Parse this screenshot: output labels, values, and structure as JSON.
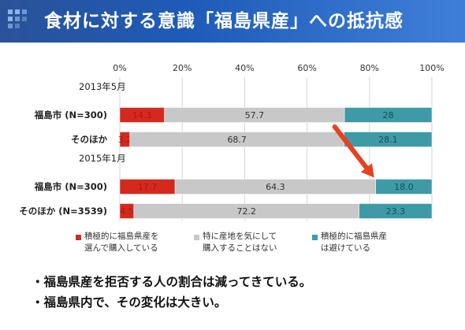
{
  "header": {
    "title": "食材に対する意識「福島県産」への抵抗感"
  },
  "chart_data": {
    "type": "bar",
    "orientation": "horizontal",
    "stacked": true,
    "percent_axis": true,
    "x_ticks": [
      "0%",
      "20%",
      "40%",
      "60%",
      "80%",
      "100%"
    ],
    "xlim": [
      0,
      100
    ],
    "groups": [
      {
        "label": "2013年5月",
        "rows": [
          {
            "label": "福島市 (N=300)",
            "values": [
              14.3,
              57.7,
              28
            ],
            "value_labels": [
              "14.3",
              "57.7",
              "28"
            ]
          },
          {
            "label": "そのほか",
            "values": [
              3.2,
              68.7,
              28.1
            ],
            "value_labels": [
              "3.2",
              "68.7",
              "28.1"
            ]
          }
        ]
      },
      {
        "label": "2015年1月",
        "rows": [
          {
            "label": "福島市 (N=300)",
            "values": [
              17.7,
              64.3,
              18.0
            ],
            "value_labels": [
              "17.7",
              "64.3",
              "18.0"
            ]
          },
          {
            "label": "そのほか (N=3539)",
            "values": [
              4.5,
              72.2,
              23.3
            ],
            "value_labels": [
              "4.5",
              "72.2",
              "23.3"
            ]
          }
        ]
      }
    ],
    "series": [
      {
        "name": "積極的に福島県産を\n選んで購入している",
        "color": "#d42a1e"
      },
      {
        "name": "特に産地を気にして\n購入することはない",
        "color": "#c8c8c8"
      },
      {
        "name": "積極的に福島県産\nは避けている",
        "color": "#3e9aa6"
      }
    ],
    "annotation": {
      "type": "arrow",
      "color": "#e8411f"
    },
    "grid": true,
    "legend_position": "bottom"
  },
  "notes": [
    "・福島県産を拒否する人の割合は減ってきている。",
    "・福島県内で、その変化は大きい。"
  ]
}
